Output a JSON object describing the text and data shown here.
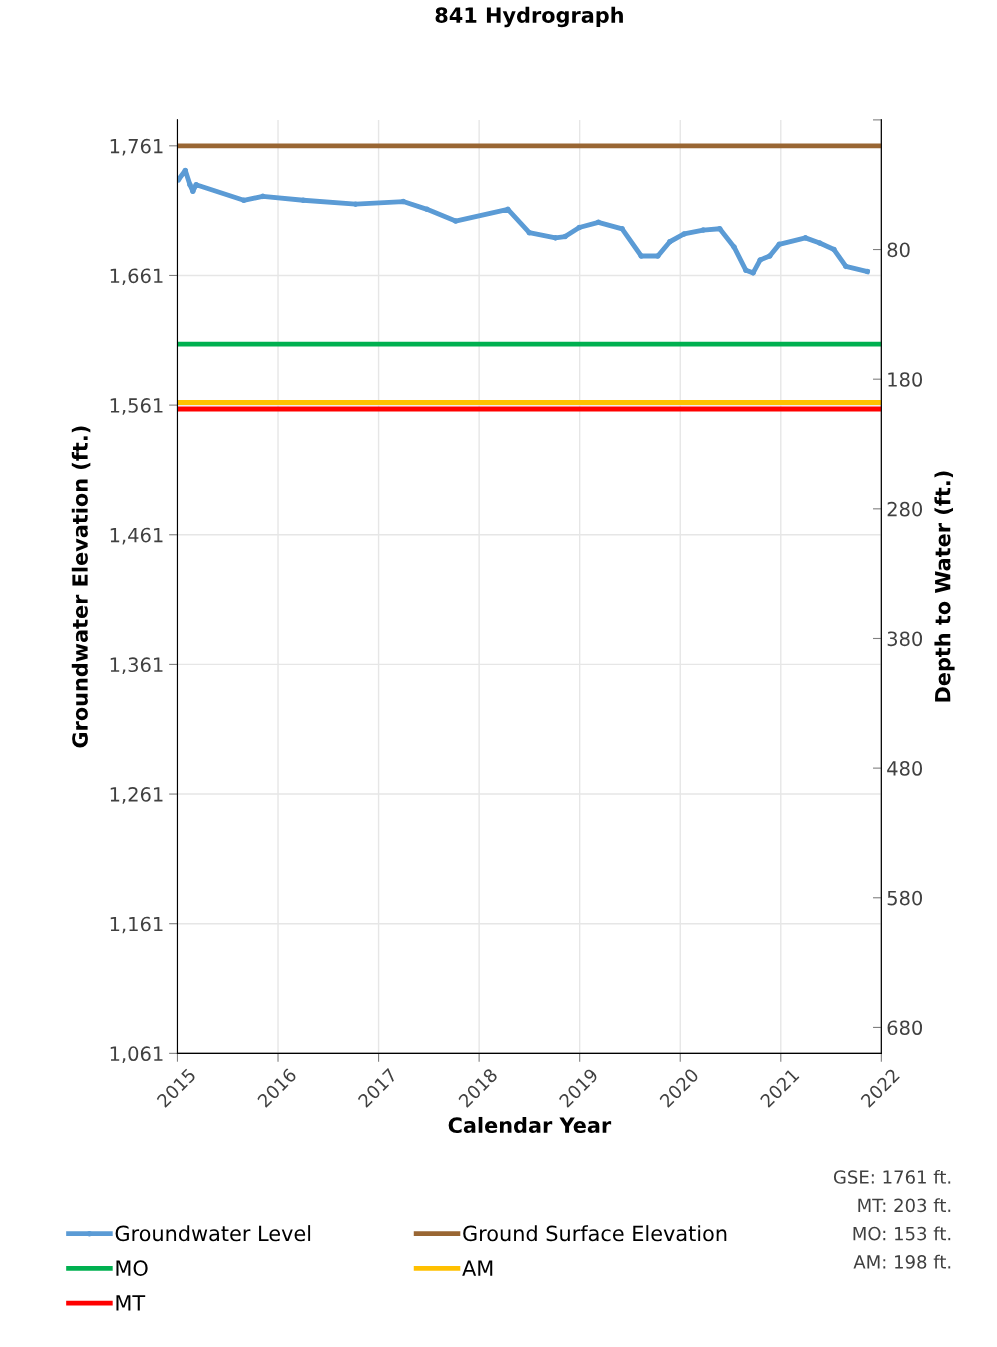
{
  "chart_data": {
    "type": "line",
    "title": "841 Hydrograph",
    "xlabel": "Calendar Year",
    "ylabel": "Groundwater Elevation (ft.)",
    "y2label": "Depth to Water (ft.)",
    "xlim": [
      2015,
      2022
    ],
    "xticks": [
      2015,
      2016,
      2017,
      2018,
      2019,
      2020,
      2021,
      2022
    ],
    "ylim": [
      1061,
      1781
    ],
    "yticks": [
      {
        "value": 1061,
        "label": "1,061"
      },
      {
        "value": 1161,
        "label": "1,161"
      },
      {
        "value": 1261,
        "label": "1,261"
      },
      {
        "value": 1361,
        "label": "1,361"
      },
      {
        "value": 1461,
        "label": "1,461"
      },
      {
        "value": 1561,
        "label": "1,561"
      },
      {
        "value": 1661,
        "label": "1,661"
      },
      {
        "value": 1761,
        "label": "1,761"
      }
    ],
    "y2lim": [
      700,
      -20
    ],
    "y2ticks": [
      {
        "value": -20,
        "label": null
      },
      80,
      180,
      280,
      380,
      480,
      580,
      680
    ],
    "grid": true,
    "legend": "bottom",
    "series": [
      {
        "name": "Groundwater Level",
        "color": "#5b9bd5",
        "marker": "circle",
        "x": [
          2015.011,
          2015.078,
          2015.124,
          2015.153,
          2015.186,
          2015.659,
          2015.849,
          2016.251,
          2016.771,
          2017.245,
          2017.482,
          2017.766,
          2018.286,
          2018.499,
          2018.759,
          2018.855,
          2018.996,
          2019.186,
          2019.422,
          2019.612,
          2019.777,
          2019.896,
          2020.038,
          2020.228,
          2020.393,
          2020.535,
          2020.653,
          2020.725,
          2020.795,
          2020.89,
          2020.984,
          2021.245,
          2021.387,
          2021.529,
          2021.647,
          2021.86
        ],
        "values": [
          1735,
          1742,
          1731,
          1726,
          1731,
          1719,
          1722,
          1719,
          1716,
          1718,
          1712,
          1703,
          1712,
          1694,
          1690,
          1691,
          1698,
          1702,
          1697,
          1676,
          1676,
          1687,
          1693,
          1696,
          1697,
          1683,
          1665,
          1663,
          1673,
          1676,
          1685,
          1690,
          1686,
          1681,
          1668,
          1664
        ]
      },
      {
        "name": "Ground Surface Elevation",
        "color": "#996633",
        "x": [
          2015,
          2022
        ],
        "values": [
          1761,
          1761
        ]
      },
      {
        "name": "MO",
        "color": "#00b050",
        "x": [
          2015,
          2022
        ],
        "values": [
          1608,
          1608
        ]
      },
      {
        "name": "AM",
        "color": "#ffc000",
        "x": [
          2015,
          2022
        ],
        "values": [
          1563,
          1563
        ]
      },
      {
        "name": "MT",
        "color": "#ff0000",
        "x": [
          2015,
          2022
        ],
        "values": [
          1558,
          1558
        ]
      }
    ],
    "annotations": [
      "GSE: 1761 ft.",
      "MT: 203 ft.",
      "MO: 153 ft.",
      "AM: 198 ft."
    ]
  }
}
